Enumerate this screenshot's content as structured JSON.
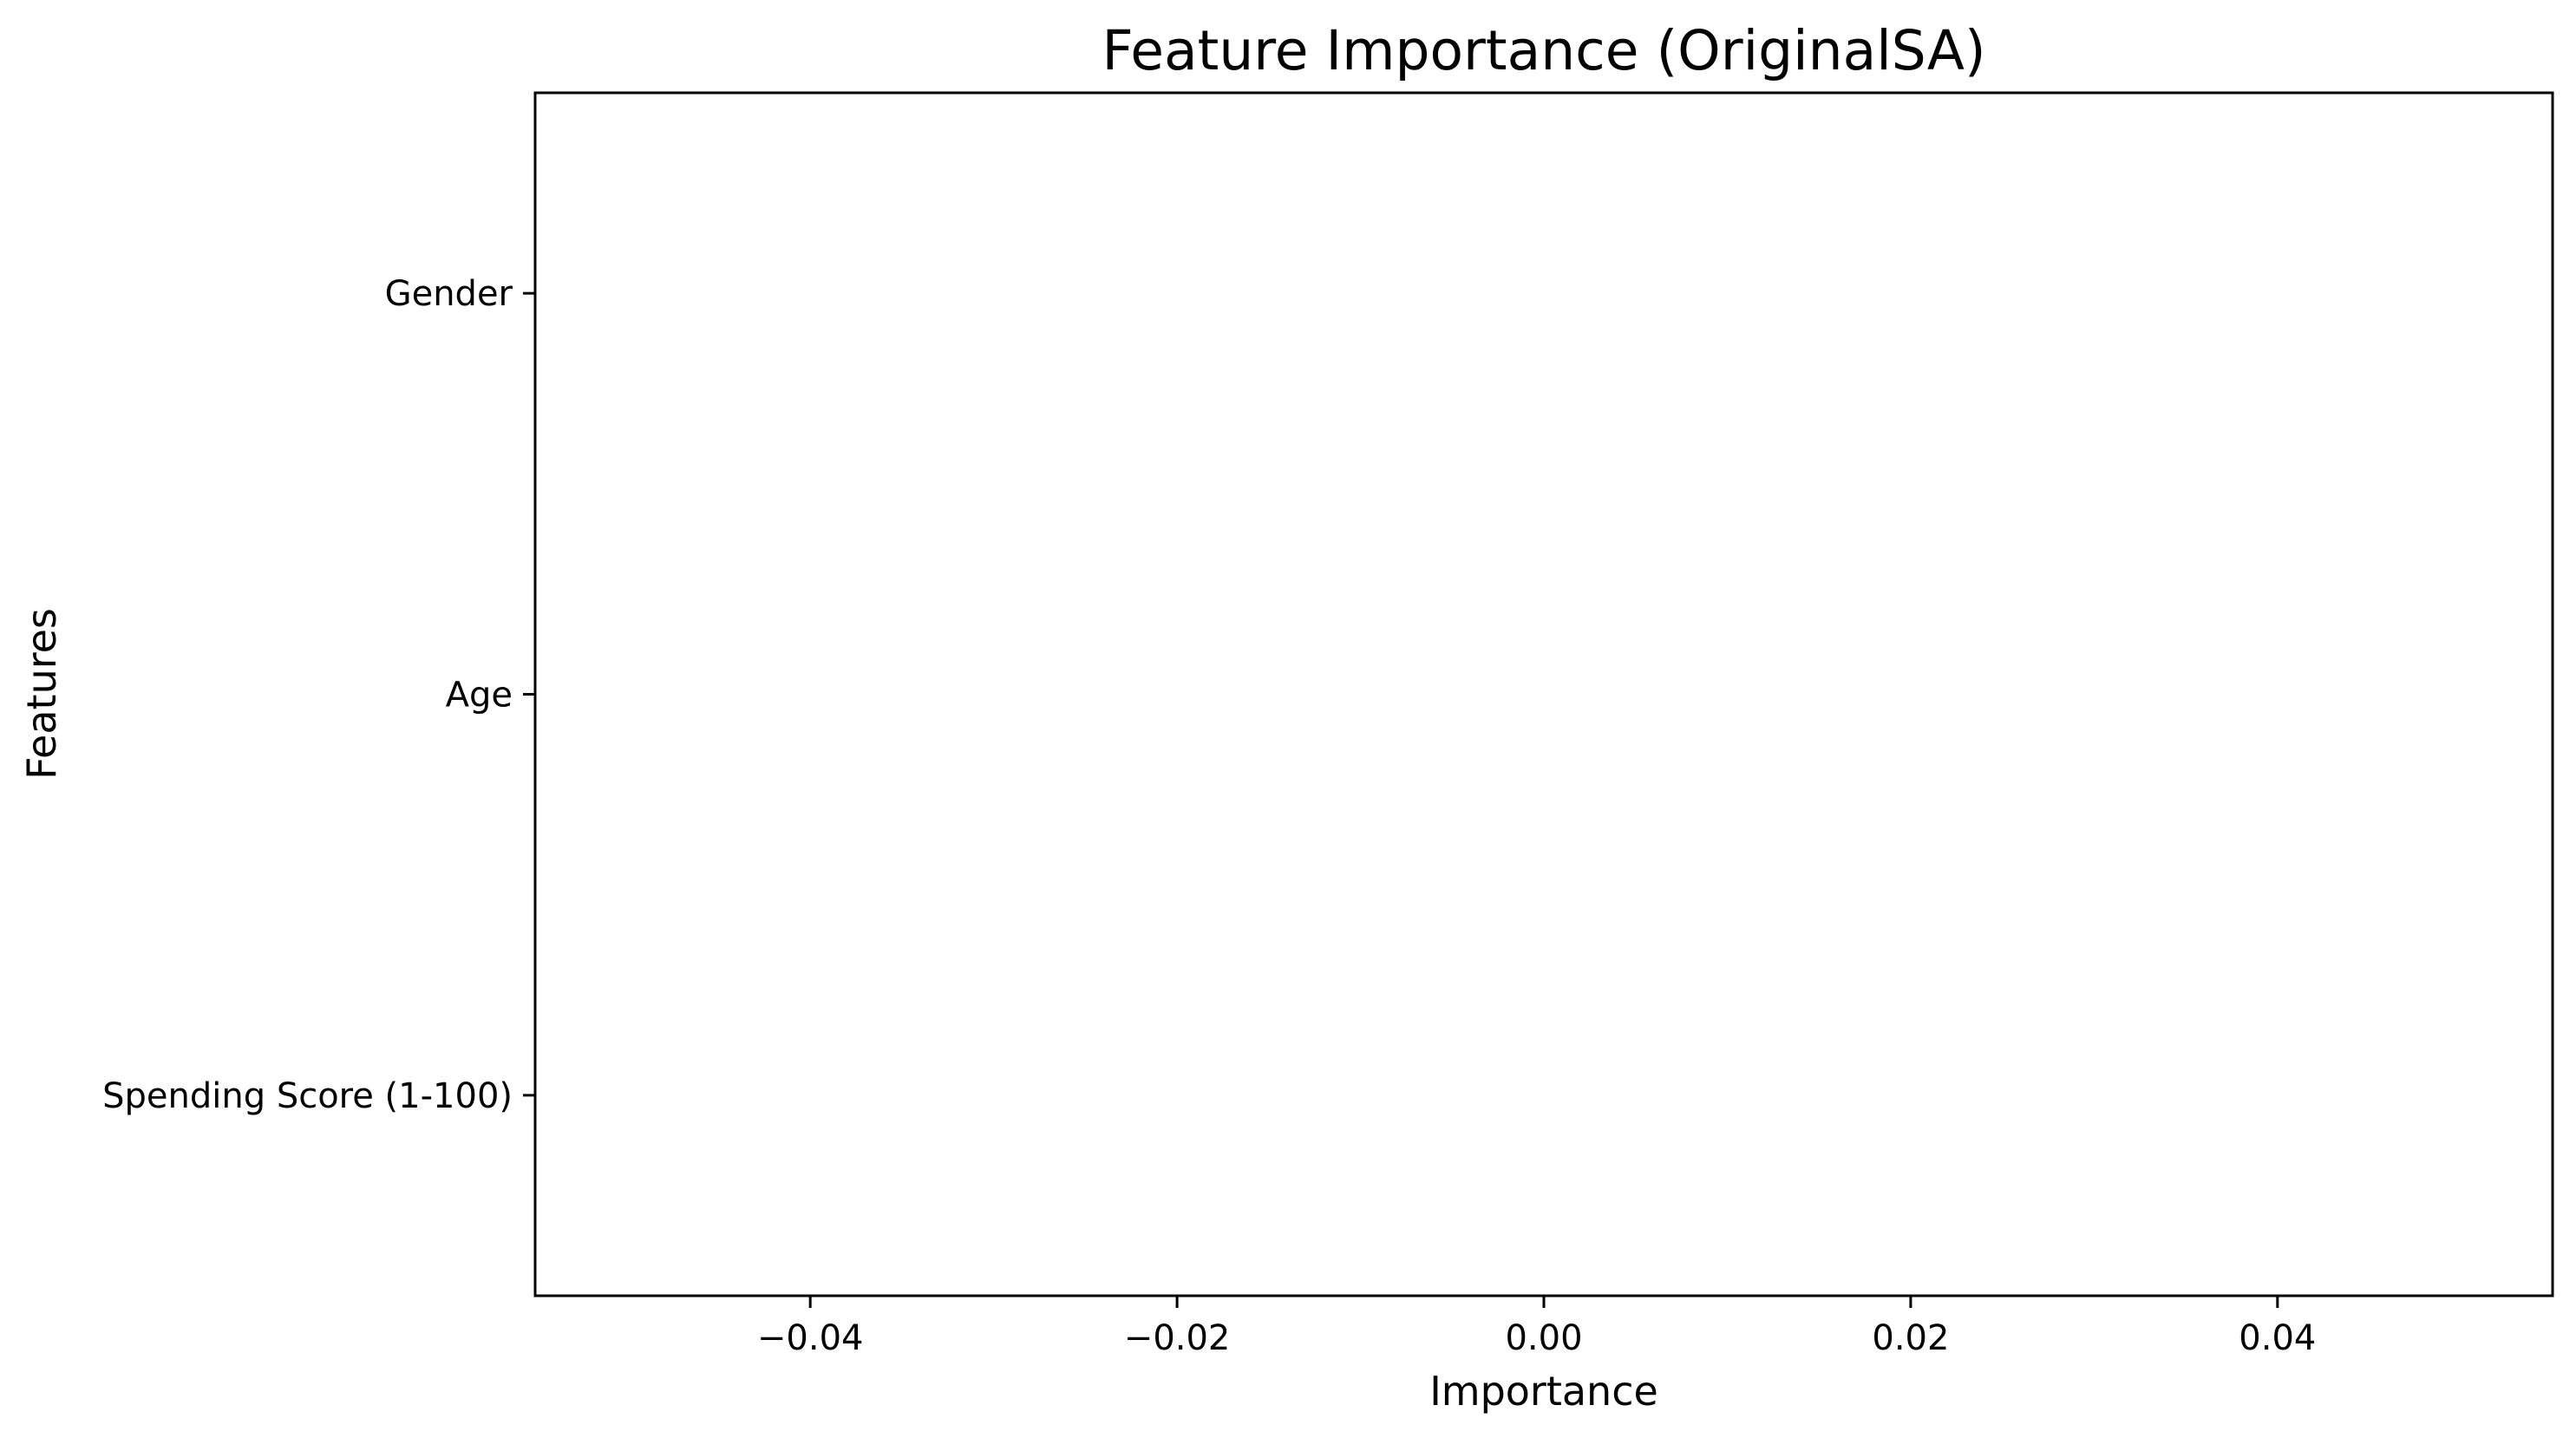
{
  "chart_data": {
    "type": "bar",
    "orientation": "horizontal",
    "title": "Feature Importance (OriginalSA)",
    "xlabel": "Importance",
    "ylabel": "Features",
    "categories": [
      "Gender",
      "Age",
      "Spending Score (1-100)"
    ],
    "values": [
      0,
      0,
      0
    ],
    "xlim": [
      -0.055,
      0.055
    ],
    "xticks": [
      -0.04,
      -0.02,
      0.0,
      0.02,
      0.04
    ],
    "xtick_labels": [
      "−0.04",
      "−0.02",
      "0.00",
      "0.02",
      "0.04"
    ],
    "grid": false,
    "bar_color": "#1f77b4"
  }
}
